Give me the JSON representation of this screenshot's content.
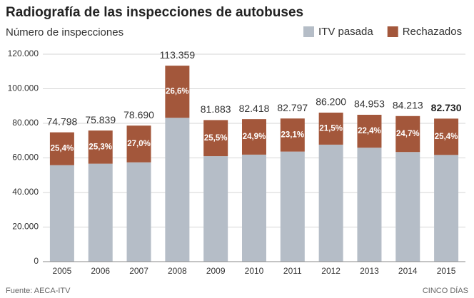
{
  "chart_data": {
    "type": "stacked-bar",
    "title": "Radiografía de las inspecciones de autobuses",
    "subtitle": "Número de inspecciones",
    "categories": [
      "2005",
      "2006",
      "2007",
      "2008",
      "2009",
      "2010",
      "2011",
      "2012",
      "2013",
      "2014",
      "2015"
    ],
    "series": [
      {
        "name": "ITV pasada",
        "color": "#b5bdc7",
        "values": [
          55799,
          56652,
          57444,
          83206,
          61003,
          61896,
          63671,
          67667,
          65924,
          63412,
          61717
        ]
      },
      {
        "name": "Rechazados",
        "color": "#a3573b",
        "values": [
          18999,
          19187,
          21246,
          30153,
          20880,
          20522,
          19126,
          18533,
          19029,
          20801,
          21013
        ]
      }
    ],
    "totals": {
      "values": [
        74798,
        75839,
        78690,
        113359,
        81883,
        82418,
        82797,
        86200,
        84953,
        84213,
        82730
      ],
      "value_labels": [
        "74.798",
        "75.839",
        "78.690",
        "113.359",
        "81.883",
        "82.418",
        "82.797",
        "86.200",
        "84.953",
        "84.213",
        "82.730"
      ]
    },
    "rejected_share": {
      "values": [
        25.4,
        25.3,
        27.0,
        26.6,
        25.5,
        24.9,
        23.1,
        21.5,
        22.4,
        24.7,
        25.4
      ],
      "value_labels": [
        "25,4%",
        "25,3%",
        "27,0%",
        "26,6%",
        "25,5%",
        "24,9%",
        "23,1%",
        "21,5%",
        "22,4%",
        "24,7%",
        "25,4%"
      ]
    },
    "ylim": [
      0,
      120000
    ],
    "yticks": [
      0,
      {
        "value": 20000,
        "label": "20.000"
      },
      {
        "value": 40000,
        "label": "40.000"
      },
      {
        "value": 60000,
        "label": "60.000"
      },
      {
        "value": 80000,
        "label": "80.000"
      },
      {
        "value": 100000,
        "label": "100.000"
      },
      {
        "value": 120000,
        "label": "120.000"
      }
    ],
    "grid": true,
    "source": "Fuente: AECA-ITV",
    "credit": "CINCO DÍAS"
  }
}
